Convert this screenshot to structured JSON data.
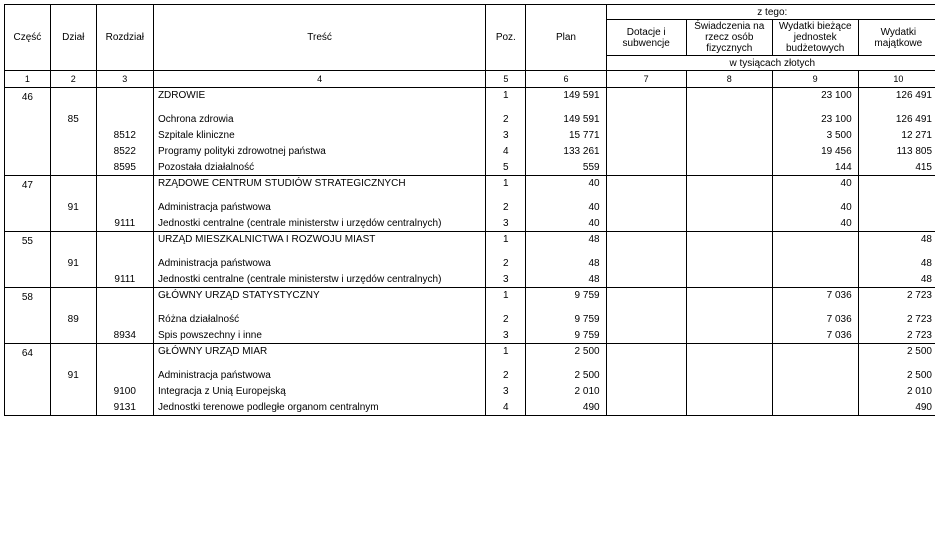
{
  "headers": {
    "czesc": "Część",
    "dzial": "Dział",
    "rozdzial": "Rozdział",
    "tresc": "Treść",
    "poz": "Poz.",
    "plan": "Plan",
    "ztego": "z tego:",
    "dotacje": "Dotacje i subwencje",
    "swiadczenia": "Świadczenia na rzecz osób fizycznych",
    "wbj": "Wydatki bieżące jednostek budżetowych",
    "majatkowe": "Wydatki majątkowe",
    "wtys": "w tysiącach złotych"
  },
  "colnums": [
    "1",
    "2",
    "3",
    "4",
    "5",
    "6",
    "7",
    "8",
    "9",
    "10"
  ],
  "groups": [
    {
      "czesc": "46",
      "rows": [
        {
          "dzial": "",
          "rozdzial": "",
          "tresc": "ZDROWIE",
          "indent": 0,
          "poz": "1",
          "plan": "149 591",
          "c7": "",
          "c8": "",
          "c9": "23 100",
          "c10": "126 491",
          "spaceAfter": true
        },
        {
          "dzial": "85",
          "rozdzial": "",
          "tresc": "Ochrona zdrowia",
          "indent": 0,
          "poz": "2",
          "plan": "149 591",
          "c7": "",
          "c8": "",
          "c9": "23 100",
          "c10": "126 491"
        },
        {
          "dzial": "",
          "rozdzial": "8512",
          "tresc": "Szpitale kliniczne",
          "indent": 1,
          "poz": "3",
          "plan": "15 771",
          "c7": "",
          "c8": "",
          "c9": "3 500",
          "c10": "12 271"
        },
        {
          "dzial": "",
          "rozdzial": "8522",
          "tresc": "Programy polityki zdrowotnej państwa",
          "indent": 1,
          "poz": "4",
          "plan": "133 261",
          "c7": "",
          "c8": "",
          "c9": "19 456",
          "c10": "113 805"
        },
        {
          "dzial": "",
          "rozdzial": "8595",
          "tresc": "Pozostała działalność",
          "indent": 1,
          "poz": "5",
          "plan": "559",
          "c7": "",
          "c8": "",
          "c9": "144",
          "c10": "415"
        }
      ]
    },
    {
      "czesc": "47",
      "rows": [
        {
          "dzial": "",
          "rozdzial": "",
          "tresc": "RZĄDOWE CENTRUM STUDIÓW STRATEGICZNYCH",
          "indent": 0,
          "poz": "1",
          "plan": "40",
          "c7": "",
          "c8": "",
          "c9": "40",
          "c10": "",
          "spaceAfter": true
        },
        {
          "dzial": "91",
          "rozdzial": "",
          "tresc": "Administracja państwowa",
          "indent": 0,
          "poz": "2",
          "plan": "40",
          "c7": "",
          "c8": "",
          "c9": "40",
          "c10": ""
        },
        {
          "dzial": "",
          "rozdzial": "9111",
          "tresc": "Jednostki centralne (centrale ministerstw i urzędów centralnych)",
          "indent": 1,
          "poz": "3",
          "plan": "40",
          "c7": "",
          "c8": "",
          "c9": "40",
          "c10": ""
        }
      ]
    },
    {
      "czesc": "55",
      "rows": [
        {
          "dzial": "",
          "rozdzial": "",
          "tresc": "URZĄD MIESZKALNICTWA I ROZWOJU MIAST",
          "indent": 0,
          "poz": "1",
          "plan": "48",
          "c7": "",
          "c8": "",
          "c9": "",
          "c10": "48",
          "spaceAfter": true
        },
        {
          "dzial": "91",
          "rozdzial": "",
          "tresc": "Administracja państwowa",
          "indent": 0,
          "poz": "2",
          "plan": "48",
          "c7": "",
          "c8": "",
          "c9": "",
          "c10": "48"
        },
        {
          "dzial": "",
          "rozdzial": "9111",
          "tresc": "Jednostki centralne (centrale ministerstw i urzędów centralnych)",
          "indent": 1,
          "poz": "3",
          "plan": "48",
          "c7": "",
          "c8": "",
          "c9": "",
          "c10": "48"
        }
      ]
    },
    {
      "czesc": "58",
      "rows": [
        {
          "dzial": "",
          "rozdzial": "",
          "tresc": "GŁÓWNY URZĄD STATYSTYCZNY",
          "indent": 0,
          "poz": "1",
          "plan": "9 759",
          "c7": "",
          "c8": "",
          "c9": "7 036",
          "c10": "2 723",
          "spaceAfter": true
        },
        {
          "dzial": "89",
          "rozdzial": "",
          "tresc": "Różna działalność",
          "indent": 0,
          "poz": "2",
          "plan": "9 759",
          "c7": "",
          "c8": "",
          "c9": "7 036",
          "c10": "2 723"
        },
        {
          "dzial": "",
          "rozdzial": "8934",
          "tresc": "Spis powszechny i inne",
          "indent": 1,
          "poz": "3",
          "plan": "9 759",
          "c7": "",
          "c8": "",
          "c9": "7 036",
          "c10": "2 723"
        }
      ]
    },
    {
      "czesc": "64",
      "rows": [
        {
          "dzial": "",
          "rozdzial": "",
          "tresc": "GŁÓWNY URZĄD MIAR",
          "indent": 0,
          "poz": "1",
          "plan": "2 500",
          "c7": "",
          "c8": "",
          "c9": "",
          "c10": "2 500",
          "spaceAfter": true
        },
        {
          "dzial": "91",
          "rozdzial": "",
          "tresc": "Administracja państwowa",
          "indent": 0,
          "poz": "2",
          "plan": "2 500",
          "c7": "",
          "c8": "",
          "c9": "",
          "c10": "2 500"
        },
        {
          "dzial": "",
          "rozdzial": "9100",
          "tresc": "Integracja z Unią Europejską",
          "indent": 1,
          "poz": "3",
          "plan": "2 010",
          "c7": "",
          "c8": "",
          "c9": "",
          "c10": "2 010"
        },
        {
          "dzial": "",
          "rozdzial": "9131",
          "tresc": "Jednostki terenowe podległe organom centralnym",
          "indent": 1,
          "poz": "4",
          "plan": "490",
          "c7": "",
          "c8": "",
          "c9": "",
          "c10": "490"
        }
      ]
    }
  ]
}
